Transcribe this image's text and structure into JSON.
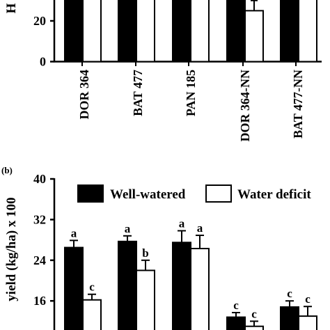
{
  "chart_data": [
    {
      "type": "bar",
      "panel_label": "",
      "ylabel": "H",
      "yticks": [
        0,
        20
      ],
      "categories": [
        "DOR 364",
        "BAT 477",
        "PAN 185",
        "DOR 364-NN",
        "BAT 477-NN"
      ],
      "series": [
        {
          "name": "Well-watered",
          "values": [
            null,
            null,
            null,
            null,
            null
          ]
        },
        {
          "name": "Water deficit",
          "values": [
            null,
            null,
            null,
            25,
            null
          ]
        }
      ],
      "error_bars": {
        "Water deficit": [
          null,
          null,
          null,
          5,
          null
        ]
      },
      "ylim": [
        0,
        45
      ]
    },
    {
      "type": "bar",
      "panel_label": "(b)",
      "ylabel": "yield (kg/ha) x 100",
      "yticks": [
        16,
        24,
        32,
        40
      ],
      "ylim": [
        8,
        40
      ],
      "legend_position": "top",
      "series": [
        {
          "name": "Well-watered",
          "values": [
            26.5,
            27.7,
            27.5,
            12.8,
            14.8
          ],
          "errors": [
            1.4,
            1.1,
            2.3,
            0.9,
            1.2
          ],
          "letters": [
            "a",
            "a",
            "a",
            "c",
            "c"
          ]
        },
        {
          "name": "Water deficit",
          "values": [
            16.2,
            22.0,
            26.3,
            11.0,
            13.0
          ],
          "errors": [
            1.1,
            2.0,
            2.6,
            1.0,
            1.9
          ],
          "letters": [
            "c",
            "b",
            "a",
            "c",
            "c"
          ]
        }
      ]
    }
  ],
  "colors": {
    "well_watered": "#000000",
    "water_deficit": "#ffffff"
  }
}
